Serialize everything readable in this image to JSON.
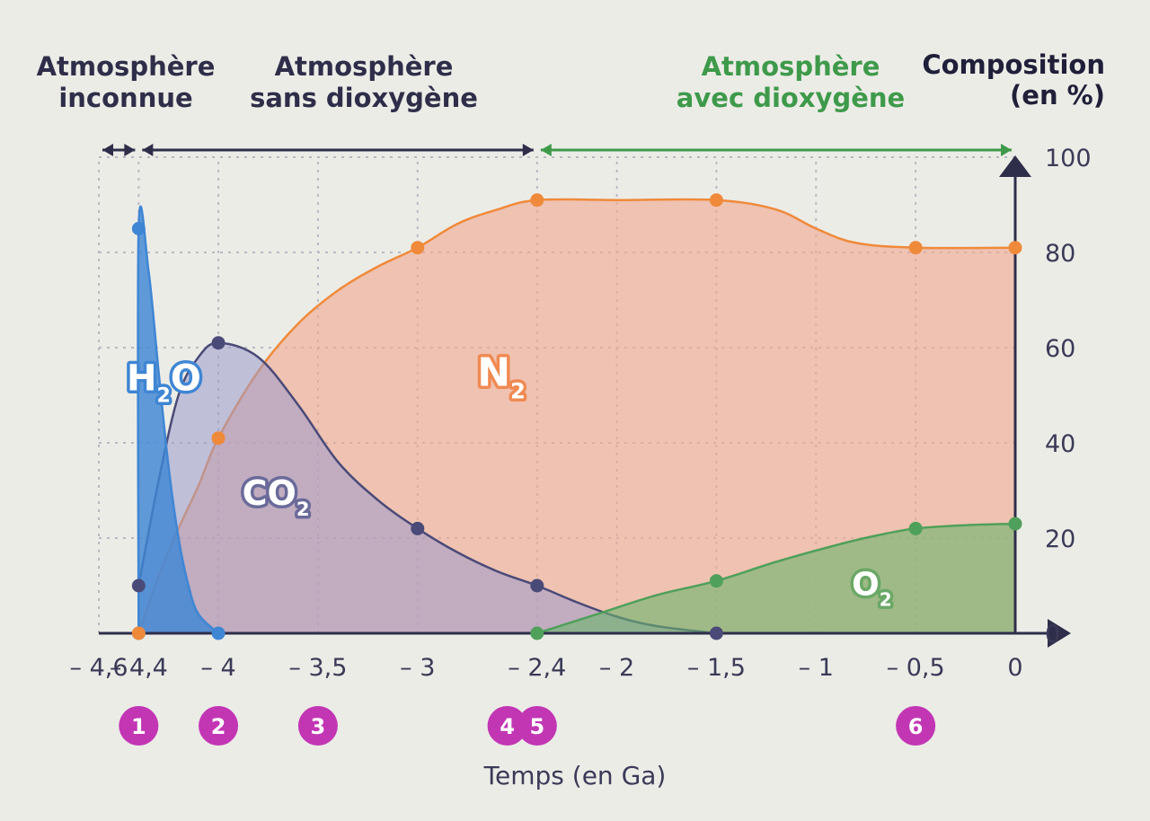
{
  "chart_data": {
    "type": "area",
    "eras": [
      {
        "label_line1": "Atmosphère",
        "label_line2": "inconnue",
        "from": -4.6,
        "to": -4.4,
        "color": "#2e2e4a"
      },
      {
        "label_line1": "Atmosphère",
        "label_line2": "sans dioxygène",
        "from": -4.4,
        "to": -2.4,
        "color": "#2e2e4a"
      },
      {
        "label_line1": "Atmosphère",
        "label_line2": "avec dioxygène",
        "from": -2.4,
        "to": 0,
        "color": "#3e9a4a"
      }
    ],
    "ylabel_line1": "Composition",
    "ylabel_line2": "(en %)",
    "xlabel": "Temps (en Ga)",
    "xlim": [
      -4.6,
      0
    ],
    "ylim": [
      0,
      100
    ],
    "x_ticks": [
      -4.6,
      -4.4,
      -4,
      -3.5,
      -3,
      -2.4,
      -2,
      -1.5,
      -1,
      -0.5,
      0
    ],
    "x_tick_labels": [
      "– 4,6",
      "– 4,4",
      "– 4",
      "– 3,5",
      "– 3",
      "– 2,4",
      "– 2",
      "– 1,5",
      "– 1",
      "– 0,5",
      "0"
    ],
    "y_ticks": [
      0,
      20,
      40,
      60,
      80,
      100
    ],
    "y_tick_labels": [
      "0",
      "20",
      "40",
      "60",
      "80",
      "100"
    ],
    "grid": true,
    "series": [
      {
        "name": "H2O",
        "label": "H",
        "label_sub": "2",
        "label_tail": "O",
        "color": "#3f86d4",
        "fill": "#3f86d4",
        "fill_opacity": 0.82,
        "points": [
          [
            -4.4,
            0
          ],
          [
            -4.4,
            85
          ],
          [
            -4,
            0
          ]
        ],
        "curve": [
          [
            -4.4,
            0
          ],
          [
            -4.4,
            85
          ],
          [
            -4.35,
            76
          ],
          [
            -4.3,
            55
          ],
          [
            -4.25,
            35
          ],
          [
            -4.2,
            20
          ],
          [
            -4.15,
            10
          ],
          [
            -4.1,
            4
          ],
          [
            -4,
            0
          ]
        ]
      },
      {
        "name": "CO2",
        "label": "CO",
        "label_sub": "2",
        "label_tail": "",
        "color": "#4a4a78",
        "fill": "#9a9bcc",
        "fill_opacity": 0.55,
        "points": [
          [
            -4.4,
            10
          ],
          [
            -4,
            61
          ],
          [
            -3,
            22
          ],
          [
            -2.4,
            10
          ],
          [
            -1.5,
            0
          ]
        ],
        "curve": [
          [
            -4.4,
            10
          ],
          [
            -4.3,
            32
          ],
          [
            -4.2,
            50
          ],
          [
            -4.1,
            58
          ],
          [
            -4,
            61
          ],
          [
            -3.8,
            58
          ],
          [
            -3.6,
            48
          ],
          [
            -3.4,
            36
          ],
          [
            -3.2,
            28
          ],
          [
            -3,
            22
          ],
          [
            -2.8,
            17
          ],
          [
            -2.6,
            13
          ],
          [
            -2.4,
            10
          ],
          [
            -2.2,
            6.5
          ],
          [
            -2,
            3.5
          ],
          [
            -1.8,
            1.5
          ],
          [
            -1.5,
            0
          ]
        ]
      },
      {
        "name": "N2",
        "label": "N",
        "label_sub": "2",
        "label_tail": "",
        "color": "#ef8a3a",
        "fill": "#f0a890",
        "fill_opacity": 0.62,
        "points": [
          [
            -4.4,
            0
          ],
          [
            -4,
            41
          ],
          [
            -3,
            81
          ],
          [
            -2.4,
            91
          ],
          [
            -1.5,
            91
          ],
          [
            -0.5,
            81
          ],
          [
            0,
            81
          ]
        ],
        "curve": [
          [
            -4.4,
            0
          ],
          [
            -4.3,
            12
          ],
          [
            -4.2,
            22
          ],
          [
            -4.1,
            31
          ],
          [
            -4,
            41
          ],
          [
            -3.8,
            55
          ],
          [
            -3.6,
            65
          ],
          [
            -3.4,
            72
          ],
          [
            -3.2,
            77
          ],
          [
            -3,
            81
          ],
          [
            -2.8,
            86
          ],
          [
            -2.6,
            89
          ],
          [
            -2.4,
            91
          ],
          [
            -2,
            91
          ],
          [
            -1.5,
            91
          ],
          [
            -1.2,
            89
          ],
          [
            -1,
            85
          ],
          [
            -0.8,
            82
          ],
          [
            -0.5,
            81
          ],
          [
            0,
            81
          ]
        ]
      },
      {
        "name": "O2",
        "label": "O",
        "label_sub": "2",
        "label_tail": "",
        "color": "#4fa05a",
        "fill": "#6bb46a",
        "fill_opacity": 0.6,
        "points": [
          [
            -2.4,
            0
          ],
          [
            -1.5,
            11
          ],
          [
            -0.5,
            22
          ],
          [
            0,
            23
          ]
        ],
        "curve": [
          [
            -2.4,
            0
          ],
          [
            -2.1,
            4
          ],
          [
            -1.8,
            8
          ],
          [
            -1.5,
            11
          ],
          [
            -1.2,
            15
          ],
          [
            -0.9,
            18.5
          ],
          [
            -0.7,
            20.5
          ],
          [
            -0.5,
            22
          ],
          [
            -0.25,
            22.7
          ],
          [
            0,
            23
          ]
        ]
      }
    ],
    "markers": [
      {
        "num": "1",
        "x": -4.4
      },
      {
        "num": "2",
        "x": -4
      },
      {
        "num": "3",
        "x": -3.5
      },
      {
        "num": "4",
        "x": -2.55
      },
      {
        "num": "5",
        "x": -2.4
      },
      {
        "num": "6",
        "x": -0.5
      }
    ],
    "marker_color": "#c236b4"
  }
}
